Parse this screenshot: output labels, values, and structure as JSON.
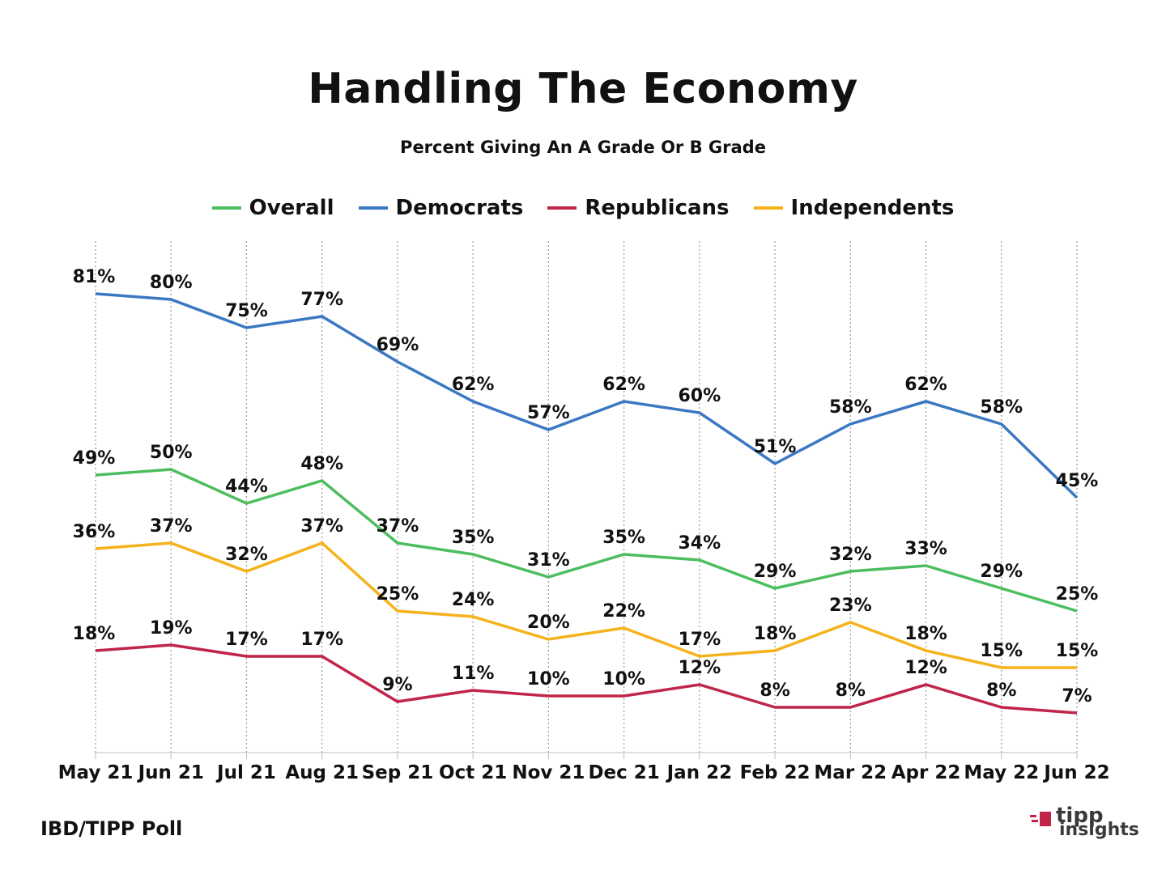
{
  "header": {
    "title": "Handling The Economy",
    "subtitle": "Percent Giving An A Grade Or B Grade"
  },
  "footer": {
    "source": "IBD/TIPP Poll",
    "logo_line1": "tipp",
    "logo_line2": "insights"
  },
  "chart_data": {
    "type": "line",
    "title": "Handling The Economy",
    "subtitle": "Percent Giving An A Grade Or B Grade",
    "xlabel": "",
    "ylabel": "",
    "ylim": [
      0,
      90
    ],
    "grid": "vertical dotted",
    "legend_position": "top",
    "categories": [
      "May 21",
      "Jun 21",
      "Jul 21",
      "Aug 21",
      "Sep 21",
      "Oct 21",
      "Nov 21",
      "Dec 21",
      "Jan 22",
      "Feb 22",
      "Mar 22",
      "Apr 22",
      "May 22",
      "Jun 22"
    ],
    "series": [
      {
        "name": "Overall",
        "color": "#4cbe5f",
        "values": [
          49,
          50,
          44,
          48,
          37,
          35,
          31,
          35,
          34,
          29,
          32,
          33,
          29,
          25
        ]
      },
      {
        "name": "Democrats",
        "color": "#3b78c3",
        "values": [
          81,
          80,
          75,
          77,
          69,
          62,
          57,
          62,
          60,
          51,
          58,
          62,
          58,
          45
        ]
      },
      {
        "name": "Republicans",
        "color": "#c0254a",
        "values": [
          18,
          19,
          17,
          17,
          9,
          11,
          10,
          10,
          12,
          8,
          8,
          12,
          8,
          7
        ]
      },
      {
        "name": "Independents",
        "color": "#f5b21b",
        "values": [
          36,
          37,
          32,
          37,
          25,
          24,
          20,
          22,
          17,
          18,
          23,
          18,
          15,
          15
        ]
      }
    ],
    "value_suffix": "%"
  }
}
